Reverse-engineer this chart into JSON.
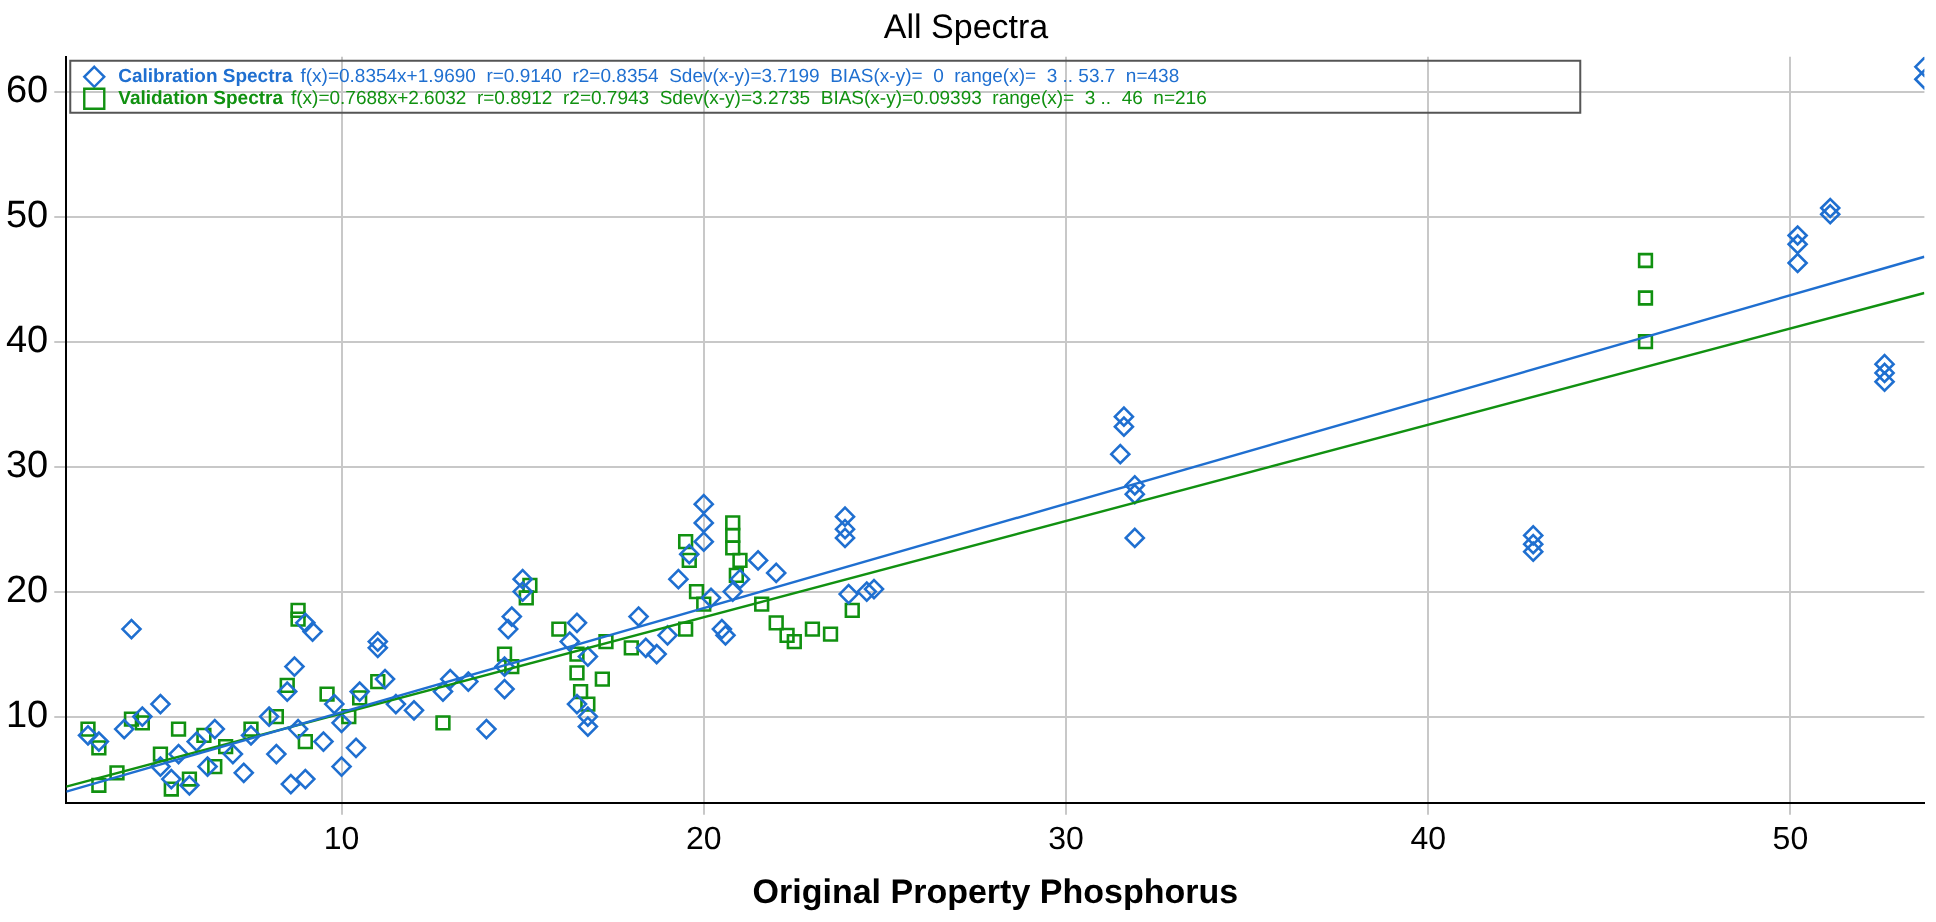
{
  "chart_data": {
    "type": "scatter",
    "title": "All Spectra",
    "xlabel": "Original Property Phosphorus",
    "xlim": [
      2.4,
      53.7
    ],
    "ylim": [
      3.1,
      62.8
    ],
    "xticks": [
      10,
      20,
      30,
      40,
      50
    ],
    "yticks": [
      10,
      20,
      30,
      40,
      50,
      60
    ],
    "grid": true,
    "legend": "top left",
    "annotations": [
      "f(x)=0.8354x+1.9690  r=0.9140  r2=0.8354  Sdev(x-y)=3.7199  BIAS(x-y)=  0  range(x)=  3 .. 53.7  n=438",
      "f(x)=0.7688x+2.6032  r=0.8912  r2=0.7943  Sdev(x-y)=3.2735  BIAS(x-y)=0.09393  range(x)=  3 ..  46  n=216"
    ],
    "series": [
      {
        "name": "Calibration Spectra",
        "type": "scatter",
        "marker": "diamond",
        "color": "#1f6fd0",
        "x": [
          4.2,
          31.6,
          31.6,
          31.5,
          31.9,
          31.9,
          31.9,
          42.9,
          42.9,
          42.9,
          50.2,
          50.2,
          50.2,
          51.1,
          51.1,
          52.6,
          52.6,
          52.6,
          53.7,
          53.7,
          20,
          20,
          20,
          23.9,
          23.9,
          23.9,
          24.5,
          24.7,
          24,
          15,
          15,
          14.7,
          14.6,
          16.5,
          16.3,
          16.8,
          16.8,
          16.8,
          16.5,
          18.2,
          18.4,
          18.7,
          19,
          19.6,
          19.3,
          20.5,
          20.6,
          20.2,
          20.8,
          12.8,
          13,
          13.5,
          14,
          14.5,
          14.5,
          11,
          11,
          11.2,
          10.5,
          10,
          9,
          9.2,
          8.7,
          8.5,
          8.8,
          9,
          8.6,
          3,
          3.3,
          4,
          4.5,
          5,
          5,
          5.3,
          5.5,
          5.8,
          6,
          6.3,
          6.5,
          7,
          7.3,
          7.5,
          8,
          8.2,
          9.5,
          9.8,
          10,
          10.4,
          11.5,
          12,
          22,
          21.5,
          21
        ],
        "values": [
          17,
          34,
          33.2,
          31,
          28.5,
          27.8,
          24.3,
          24.5,
          23.8,
          23.2,
          48.5,
          47.8,
          46.3,
          50.7,
          50.2,
          38.2,
          37.5,
          36.8,
          62,
          61,
          27,
          25.5,
          24,
          26,
          25,
          24.3,
          20,
          20.2,
          19.8,
          21,
          20,
          18,
          17,
          17.5,
          16,
          14.8,
          10,
          9.2,
          11,
          18,
          15.5,
          15,
          16.5,
          23,
          21,
          17,
          16.5,
          19.5,
          20,
          12,
          13,
          12.8,
          9,
          14,
          12.2,
          15.5,
          16,
          13,
          12,
          9.5,
          17.5,
          16.8,
          14,
          12,
          9,
          5,
          4.6,
          8.5,
          8,
          9,
          10,
          11,
          6,
          5,
          7,
          4.5,
          8,
          6,
          9,
          7,
          5.5,
          8.5,
          10,
          7,
          8,
          11,
          6,
          7.5,
          11,
          10.5,
          21.5,
          22.5,
          21
        ]
      },
      {
        "name": "Validation Spectra",
        "type": "scatter",
        "marker": "square",
        "color": "#119111",
        "x": [
          46,
          46,
          46,
          20.8,
          20.8,
          20.8,
          21,
          20.9,
          19.5,
          19.6,
          19.8,
          20,
          19.5,
          21.6,
          22,
          22.3,
          22.5,
          23,
          23.5,
          24.1,
          15.2,
          15.1,
          16,
          16.5,
          16.5,
          16.6,
          16.8,
          17.3,
          18,
          17.2,
          14.5,
          14.7,
          12.8,
          11,
          10.5,
          10.2,
          9.6,
          8.8,
          8.8,
          8.5,
          8.2,
          9,
          7.5,
          6.8,
          6.5,
          6.2,
          5.8,
          5.5,
          5,
          4.5,
          4.2,
          3.8,
          3.3,
          3,
          3.3,
          5.3
        ],
        "values": [
          46.5,
          43.5,
          40,
          25.5,
          24.5,
          23.5,
          22.5,
          21.3,
          24,
          22.5,
          20,
          19,
          17,
          19,
          17.5,
          16.5,
          16,
          17,
          16.6,
          18.5,
          20.5,
          19.5,
          17,
          15,
          13.5,
          12,
          11,
          16,
          15.5,
          13,
          15,
          14,
          9.5,
          12.8,
          11.5,
          10,
          11.8,
          18.5,
          17.8,
          12.5,
          10,
          8,
          9,
          7.6,
          6,
          8.5,
          5,
          9,
          7,
          9.5,
          9.8,
          5.5,
          4.5,
          9,
          7.5,
          4.2
        ]
      },
      {
        "type": "line",
        "color": "#1f6fd0",
        "x": [
          2.4,
          53.7
        ],
        "values": [
          4.0,
          46.8
        ]
      },
      {
        "type": "line",
        "color": "#119111",
        "x": [
          2.4,
          53.7
        ],
        "values": [
          4.4,
          43.9
        ]
      }
    ]
  }
}
